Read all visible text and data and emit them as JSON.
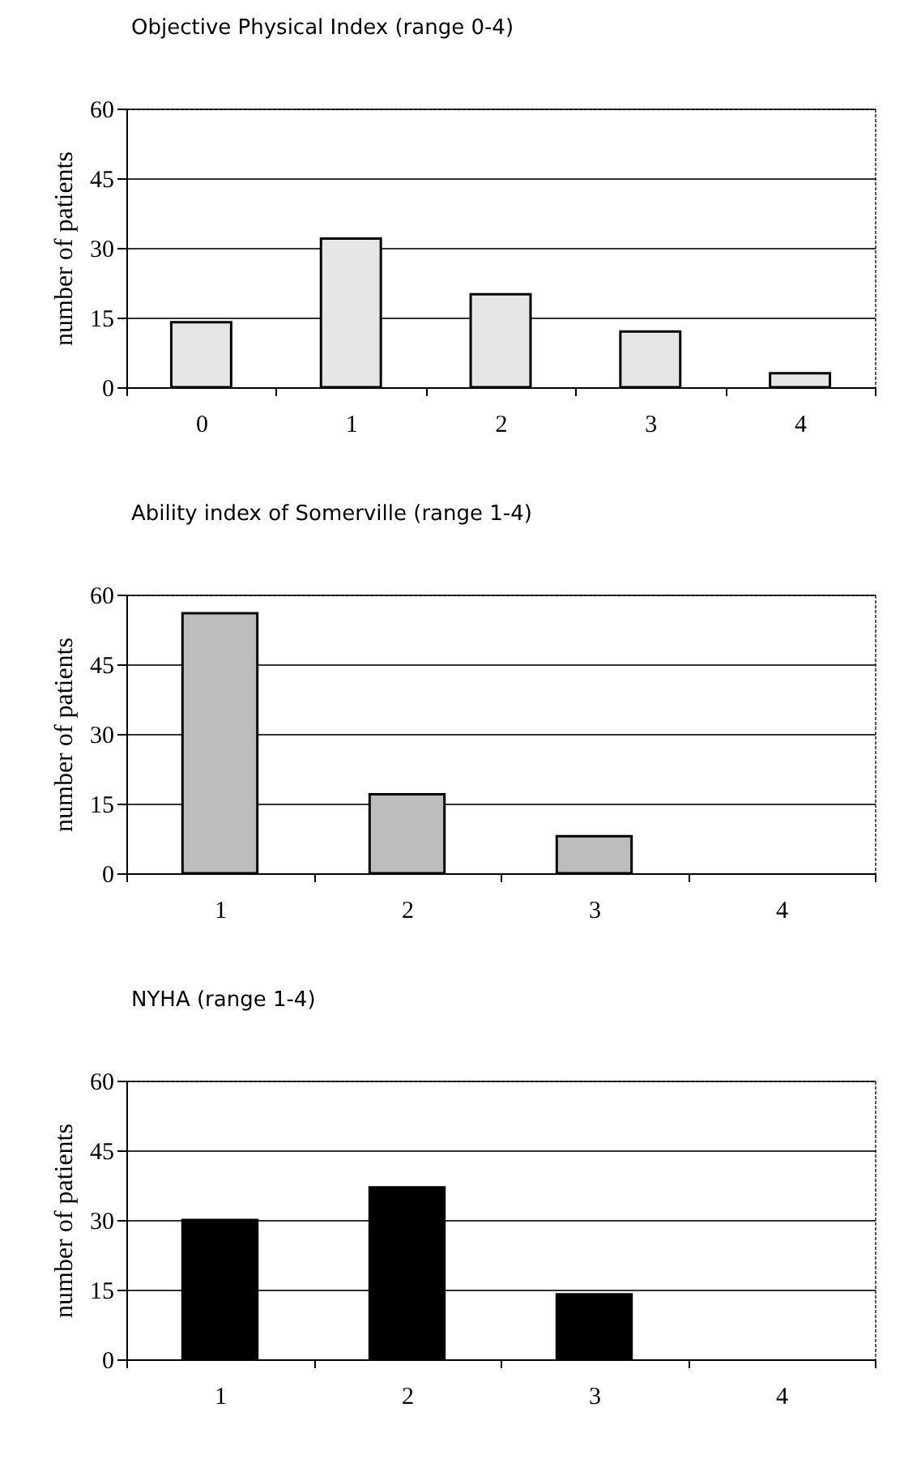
{
  "chart_data": [
    {
      "type": "bar",
      "title": "Objective Physical Index (range 0-4)",
      "ylabel": "number of patients",
      "categories": [
        "0",
        "1",
        "2",
        "3",
        "4"
      ],
      "values": [
        14,
        32,
        20,
        12,
        3
      ],
      "color": "#e6e6e6",
      "ylim": [
        0,
        60
      ],
      "yticks": [
        0,
        15,
        30,
        45,
        60
      ],
      "grid": "y"
    },
    {
      "type": "bar",
      "title": "Ability index of Somerville (range 1-4)",
      "ylabel": "number of patients",
      "categories": [
        "1",
        "2",
        "3",
        "4"
      ],
      "values": [
        56,
        17,
        8,
        0
      ],
      "color": "#bdbdbd",
      "ylim": [
        0,
        60
      ],
      "yticks": [
        0,
        15,
        30,
        45,
        60
      ],
      "grid": "y"
    },
    {
      "type": "bar",
      "title": "NYHA (range 1-4)",
      "ylabel": "number of patients",
      "categories": [
        "1",
        "2",
        "3",
        "4"
      ],
      "values": [
        30,
        37,
        14,
        0
      ],
      "color": "#000000",
      "ylim": [
        0,
        60
      ],
      "yticks": [
        0,
        15,
        30,
        45,
        60
      ],
      "grid": "y"
    }
  ]
}
